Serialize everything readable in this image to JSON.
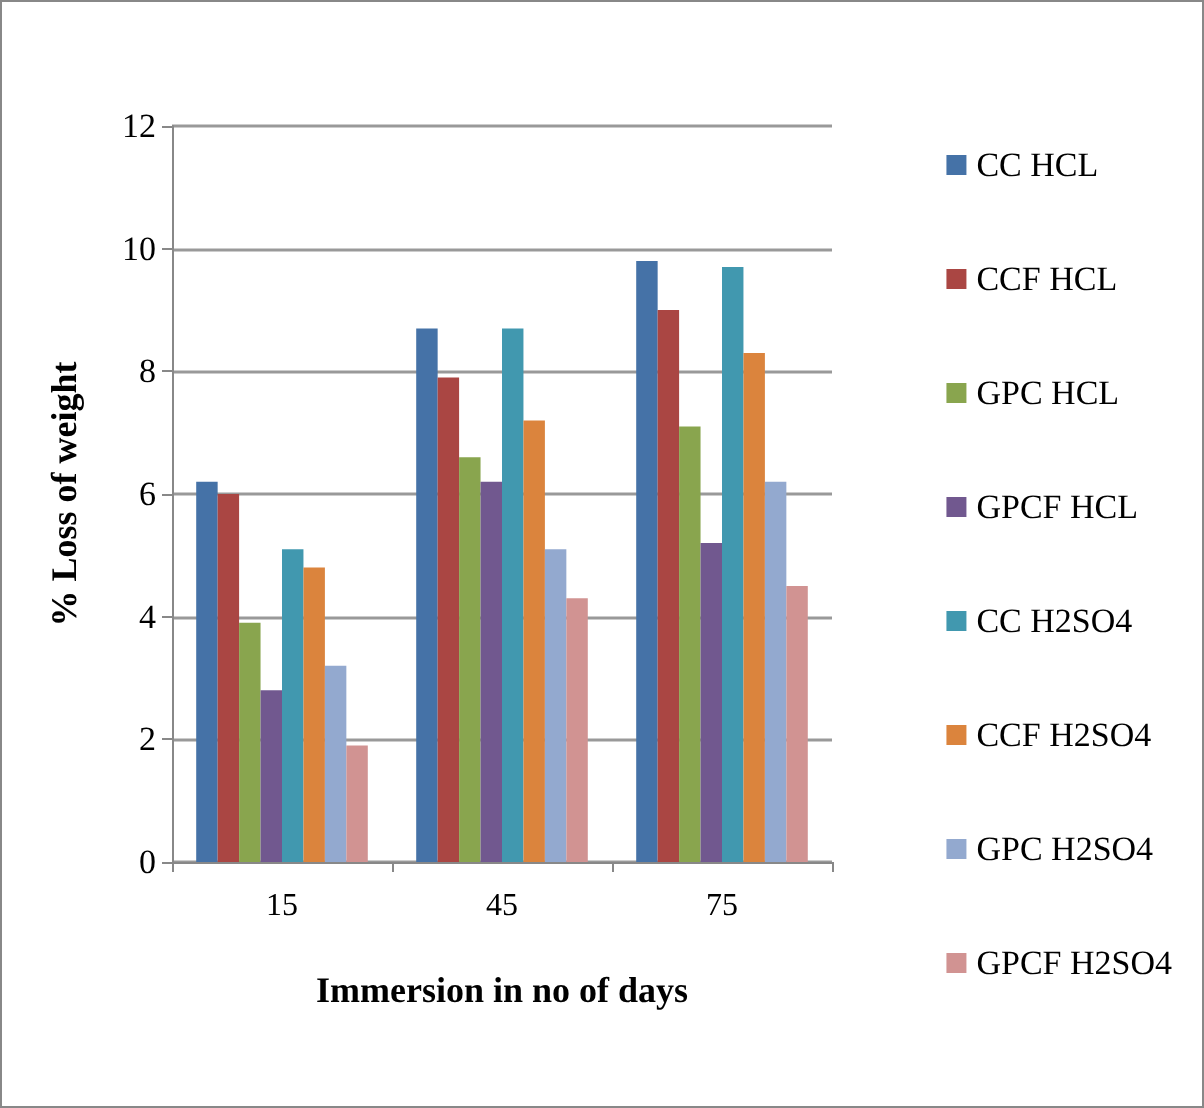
{
  "chart_data": {
    "type": "bar",
    "xlabel": "Immersion in no of days",
    "ylabel": "% Loss of weight",
    "categories": [
      "15",
      "45",
      "75"
    ],
    "series": [
      {
        "name": "CC HCL",
        "color": "#4572a7",
        "values": [
          6.2,
          8.7,
          9.8
        ]
      },
      {
        "name": "CCF HCL",
        "color": "#aa4643",
        "values": [
          6.0,
          7.9,
          9.0
        ]
      },
      {
        "name": "GPC HCL",
        "color": "#89a54e",
        "values": [
          3.9,
          6.6,
          7.1
        ]
      },
      {
        "name": "GPCF HCL",
        "color": "#71588f",
        "values": [
          2.8,
          6.2,
          5.2
        ]
      },
      {
        "name": "CC H2SO4",
        "color": "#4198af",
        "values": [
          5.1,
          8.7,
          9.7
        ]
      },
      {
        "name": "CCF H2SO4",
        "color": "#db843d",
        "values": [
          4.8,
          7.2,
          8.3
        ]
      },
      {
        "name": "GPC H2SO4",
        "color": "#93a9cf",
        "values": [
          3.2,
          5.1,
          6.2
        ]
      },
      {
        "name": "GPCF H2SO4",
        "color": "#d19392",
        "values": [
          1.9,
          4.3,
          4.5
        ]
      }
    ],
    "ylim": [
      0,
      12
    ],
    "yticks": [
      0,
      2,
      4,
      6,
      8,
      10,
      12
    ],
    "grid": "y",
    "legend": "right"
  }
}
